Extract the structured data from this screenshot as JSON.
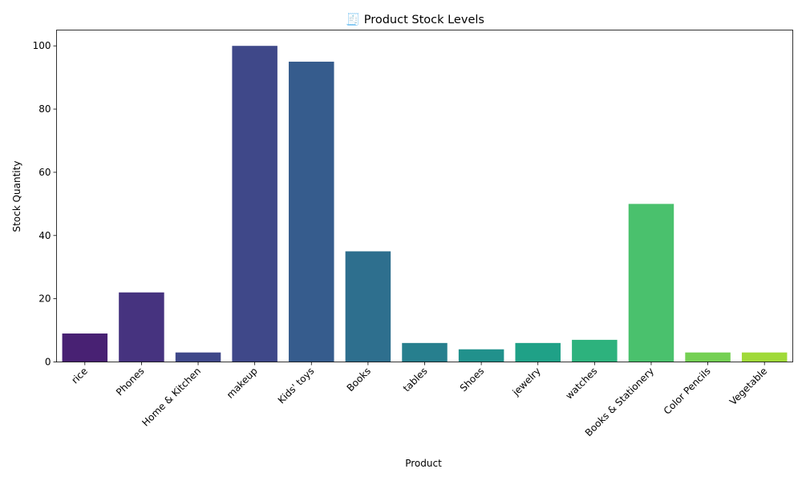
{
  "chart_data": {
    "type": "bar",
    "title": "🧾 Product Stock Levels",
    "xlabel": "Product",
    "ylabel": "Stock Quantity",
    "categories": [
      "rice",
      "Phones",
      "Home & Kitchen",
      "makeup",
      "Kids' toys",
      "Books",
      "tables",
      "Shoes",
      "jewelry",
      "watches",
      "Books & Stationery",
      "Color Pencils",
      "Vegetable"
    ],
    "values": [
      9,
      22,
      3,
      100,
      95,
      35,
      6,
      4,
      6,
      7,
      50,
      3,
      3
    ],
    "colors": [
      "#482173",
      "#46337f",
      "#3f4889",
      "#3f4889",
      "#365c8d",
      "#2e6f8e",
      "#277f8e",
      "#21918c",
      "#1fa187",
      "#2db27d",
      "#4ac16d",
      "#75d054",
      "#a0da39"
    ],
    "ylim": [
      0,
      105
    ],
    "yticks": [
      0,
      20,
      40,
      60,
      80,
      100
    ],
    "grid": false,
    "legend": "none"
  }
}
